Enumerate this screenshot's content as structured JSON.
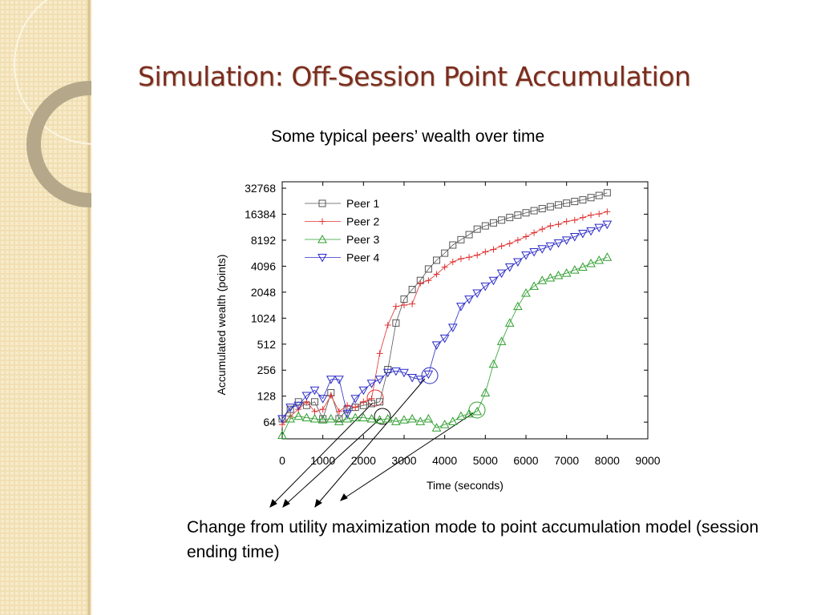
{
  "slide_title": "Simulation: Off-Session Point Accumulation",
  "caption": "Change from utility maximization mode to point accumulation model (session ending time)",
  "chart_data": {
    "type": "line",
    "title": "Some typical peers’ wealth over time",
    "xlabel": "Time (seconds)",
    "ylabel": "Accumulated wealth (points)",
    "x": [
      0,
      200,
      400,
      600,
      800,
      1000,
      1200,
      1400,
      1600,
      1800,
      2000,
      2200,
      2400,
      2600,
      2800,
      3000,
      3200,
      3400,
      3600,
      3800,
      4000,
      4200,
      4400,
      4600,
      4800,
      5000,
      5200,
      5400,
      5600,
      5800,
      6000,
      6200,
      6400,
      6600,
      6800,
      7000,
      7200,
      7400,
      7600,
      7800,
      8000
    ],
    "series": [
      {
        "name": "Peer 1",
        "color": "#555555",
        "marker": "square",
        "values": [
          70,
          90,
          110,
          100,
          110,
          70,
          140,
          70,
          90,
          95,
          100,
          105,
          110,
          260,
          900,
          1700,
          2200,
          2800,
          3800,
          4800,
          5800,
          7200,
          8300,
          9500,
          11000,
          12000,
          13000,
          14000,
          15000,
          16000,
          17000,
          18000,
          19000,
          20000,
          21000,
          22000,
          23000,
          24000,
          25500,
          27000,
          29000
        ]
      },
      {
        "name": "Peer 2",
        "color": "#e03030",
        "marker": "plus",
        "values": [
          60,
          75,
          90,
          110,
          85,
          90,
          130,
          85,
          100,
          95,
          110,
          120,
          400,
          850,
          1400,
          1450,
          1500,
          2600,
          2800,
          3300,
          4000,
          4600,
          5000,
          5200,
          5500,
          6000,
          6400,
          7000,
          7500,
          8200,
          9000,
          10000,
          11000,
          12000,
          12500,
          13500,
          14000,
          15000,
          16000,
          16500,
          17500
        ]
      },
      {
        "name": "Peer 3",
        "color": "#2e9e2e",
        "marker": "triangle",
        "values": [
          45,
          70,
          75,
          72,
          70,
          68,
          70,
          65,
          70,
          72,
          72,
          70,
          68,
          70,
          65,
          68,
          70,
          65,
          70,
          55,
          60,
          65,
          75,
          80,
          85,
          140,
          300,
          550,
          900,
          1400,
          2000,
          2400,
          2800,
          3000,
          3200,
          3400,
          3700,
          4000,
          4400,
          4800,
          5200
        ]
      },
      {
        "name": "Peer 4",
        "color": "#2a2ac8",
        "marker": "triangle-down",
        "values": [
          70,
          95,
          100,
          130,
          150,
          120,
          200,
          200,
          80,
          120,
          150,
          180,
          200,
          240,
          250,
          240,
          210,
          200,
          230,
          500,
          600,
          800,
          1400,
          1700,
          2000,
          2400,
          2800,
          3400,
          4000,
          4600,
          5500,
          6000,
          6500,
          7000,
          7600,
          8200,
          9000,
          9800,
          10500,
          11500,
          12500
        ]
      }
    ],
    "xlim": [
      0,
      9000
    ],
    "xticks": [
      0,
      1000,
      2000,
      3000,
      4000,
      5000,
      6000,
      7000,
      8000,
      9000
    ],
    "ylim": [
      41,
      38900
    ],
    "yticks": [
      64,
      128,
      256,
      512,
      1024,
      2048,
      4096,
      8192,
      16384,
      32768
    ],
    "yscale": "log2",
    "grid": false,
    "legend": "upper left"
  }
}
